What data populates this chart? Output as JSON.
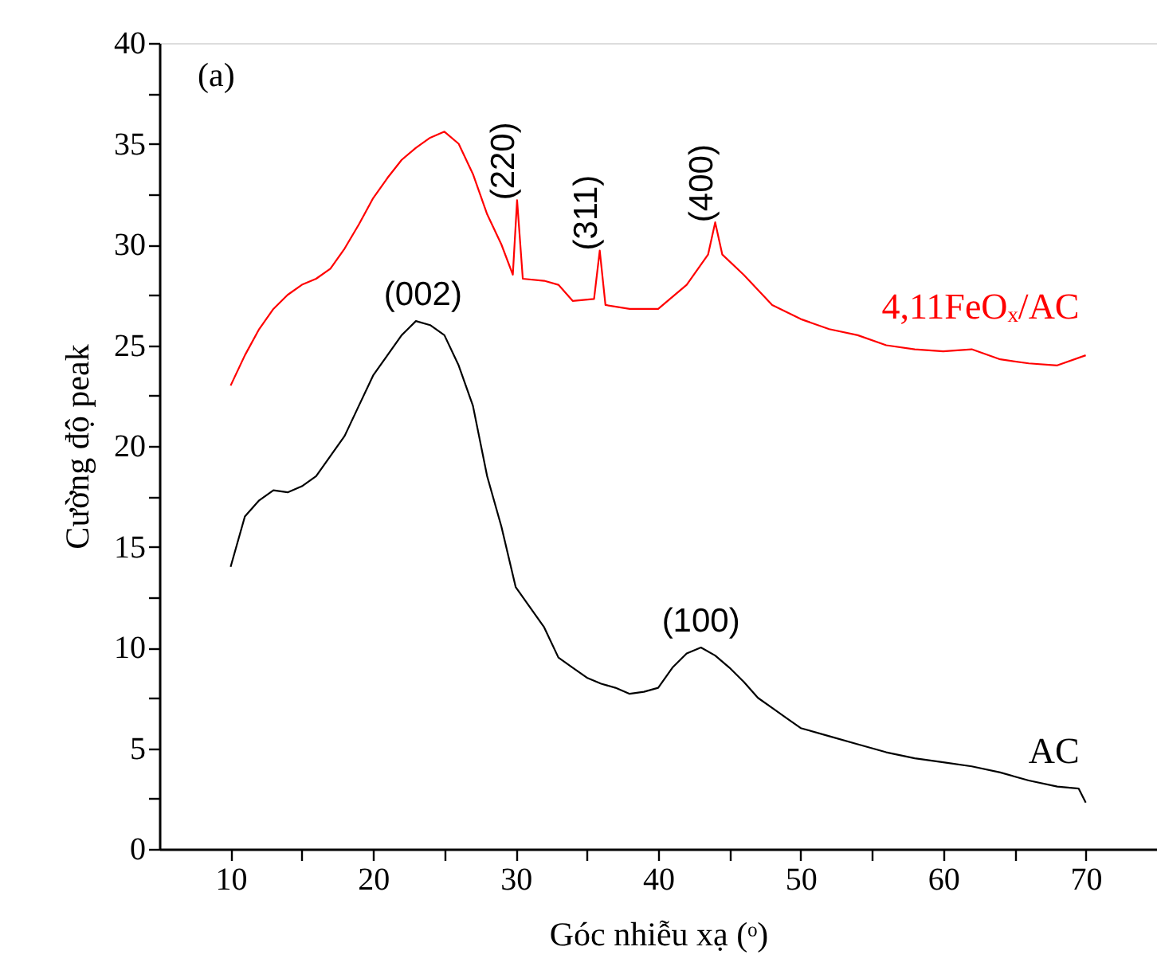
{
  "chart_data": {
    "type": "line",
    "xlabel": "Góc nhiễu xạ (ᵒ)",
    "ylabel": "Cường độ peak",
    "xlim": [
      5,
      75
    ],
    "xticks": [
      10,
      {
        "value": 15,
        "label": null
      },
      20,
      {
        "value": 25,
        "label": null
      },
      30,
      {
        "value": 35,
        "label": null
      },
      40,
      {
        "value": 45,
        "label": null
      },
      50,
      {
        "value": 55,
        "label": null
      },
      60,
      {
        "value": 65,
        "label": null
      },
      70
    ],
    "ylim": [
      0,
      40
    ],
    "yticks": [
      0,
      {
        "value": 2.5,
        "label": null
      },
      5,
      {
        "value": 7.5,
        "label": null
      },
      10,
      {
        "value": 12.5,
        "label": null
      },
      15,
      {
        "value": 17.5,
        "label": null
      },
      20,
      {
        "value": 22.5,
        "label": null
      },
      25,
      {
        "value": 27.5,
        "label": null
      },
      30,
      {
        "value": 32.5,
        "label": null
      },
      35,
      {
        "value": 37.5,
        "label": null
      },
      40
    ],
    "grid": false,
    "legend": false,
    "marker": "none",
    "line_style": "solid",
    "series": [
      {
        "name": "4,11FeOₓ/AC",
        "color": "#ff0000",
        "x": [
          10,
          11,
          12,
          13,
          14,
          15,
          16,
          17,
          18,
          19,
          20,
          21,
          22,
          23,
          24,
          25,
          26,
          27,
          28,
          29,
          29.8,
          30.1,
          30.5,
          32,
          33,
          34,
          35.5,
          35.9,
          36.3,
          38,
          40,
          42,
          43.5,
          44,
          44.5,
          46,
          48,
          50,
          52,
          54,
          56,
          58,
          60,
          62,
          64,
          66,
          68,
          70
        ],
        "values": [
          23,
          24.5,
          25.8,
          26.8,
          27.5,
          28,
          28.3,
          28.8,
          29.8,
          31,
          32.3,
          33.3,
          34.2,
          34.8,
          35.3,
          35.6,
          35,
          33.5,
          31.5,
          30,
          28.5,
          32.2,
          28.3,
          28.2,
          28,
          27.2,
          27.3,
          29.7,
          27,
          26.8,
          26.8,
          28,
          29.5,
          31.1,
          29.5,
          28.5,
          27,
          26.3,
          25.8,
          25.5,
          25,
          24.8,
          24.7,
          24.8,
          24.3,
          24.1,
          24,
          24.5
        ]
      },
      {
        "name": "AC",
        "color": "#000000",
        "x": [
          10,
          11,
          12,
          13,
          14,
          15,
          16,
          17,
          18,
          19,
          20,
          21,
          22,
          23,
          24,
          25,
          26,
          27,
          28,
          29,
          30,
          31,
          32,
          33,
          34,
          35,
          36,
          37,
          38,
          39,
          40,
          41,
          42,
          43,
          44,
          45,
          46,
          47,
          48,
          49,
          50,
          52,
          54,
          56,
          58,
          60,
          62,
          64,
          66,
          68,
          69.5,
          70
        ],
        "values": [
          14,
          16.5,
          17.3,
          17.8,
          17.7,
          18,
          18.5,
          19.5,
          20.5,
          22,
          23.5,
          24.5,
          25.5,
          26.2,
          26,
          25.5,
          24,
          22,
          18.5,
          16,
          13,
          12,
          11,
          9.5,
          9,
          8.5,
          8.2,
          8,
          7.7,
          7.8,
          8,
          9,
          9.7,
          10,
          9.6,
          9,
          8.3,
          7.5,
          7,
          6.5,
          6,
          5.6,
          5.2,
          4.8,
          4.5,
          4.3,
          4.1,
          3.8,
          3.4,
          3.1,
          3,
          2.3
        ]
      }
    ],
    "annotations": [
      "(a)",
      {
        "text": "(002)",
        "x": 23.5,
        "y": 26.2
      },
      {
        "text": "(220)",
        "x": 30.1,
        "y": 32.2
      },
      {
        "text": "(311)",
        "x": 35.9,
        "y": 29.7
      },
      {
        "text": "(400)",
        "x": 44,
        "y": 31.1
      },
      {
        "text": "(100)",
        "x": 43,
        "y": 10
      }
    ]
  }
}
